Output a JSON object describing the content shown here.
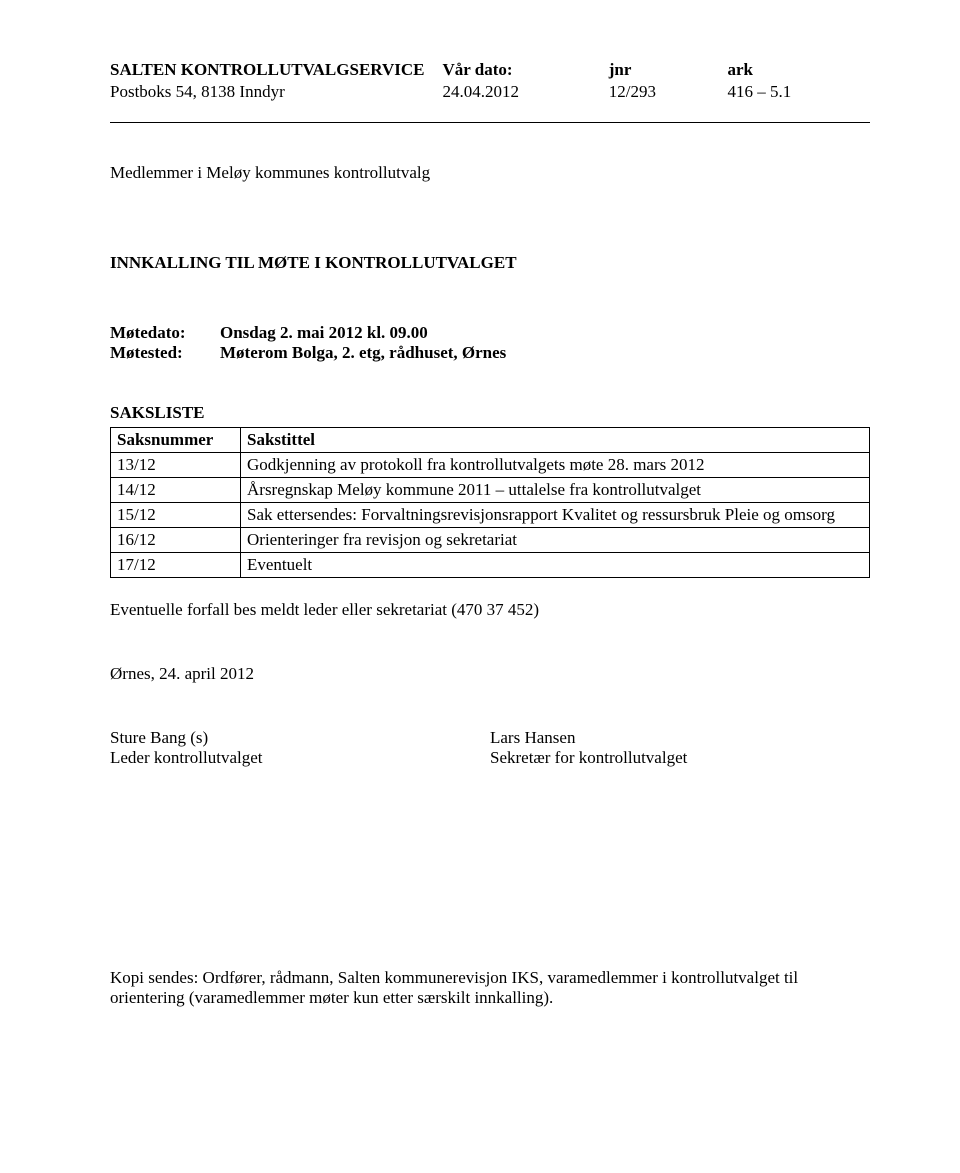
{
  "header": {
    "org": "SALTEN KONTROLLUTVALGSERVICE",
    "dato_label": "Vår dato:",
    "jnr_label": "jnr",
    "ark_label": "ark",
    "address": "Postboks 54, 8138 Inndyr",
    "dato_value": "24.04.2012",
    "jnr_value": "12/293",
    "ark_value": "416 – 5.1"
  },
  "recipients": "Medlemmer i Meløy kommunes kontrollutvalg",
  "title": "INNKALLING TIL MØTE I KONTROLLUTVALGET",
  "meeting": {
    "dato_label": "Møtedato:",
    "dato_value": "Onsdag 2. mai 2012 kl. 09.00",
    "sted_label": "Møtested:",
    "sted_value": "Møterom Bolga, 2. etg, rådhuset, Ørnes"
  },
  "saksliste_heading": "SAKSLISTE",
  "table": {
    "columns": [
      "Saksnummer",
      "Sakstittel"
    ],
    "rows": [
      [
        "13/12",
        "Godkjenning av protokoll fra kontrollutvalgets møte 28. mars 2012"
      ],
      [
        "14/12",
        "Årsregnskap Meløy kommune 2011 – uttalelse fra kontrollutvalget"
      ],
      [
        "15/12",
        "Sak ettersendes: Forvaltningsrevisjonsrapport Kvalitet og ressursbruk Pleie og omsorg"
      ],
      [
        "16/12",
        "Orienteringer fra revisjon og sekretariat"
      ],
      [
        "17/12",
        "Eventuelt"
      ]
    ]
  },
  "forfall": "Eventuelle forfall bes meldt leder eller sekretariat (470 37 452)",
  "place_date": "Ørnes, 24. april 2012",
  "sign": {
    "left_name": "Sture Bang (s)",
    "left_title": "Leder kontrollutvalget",
    "right_name": "Lars Hansen",
    "right_title": "Sekretær for kontrollutvalget"
  },
  "kopi": "Kopi sendes: Ordfører, rådmann, Salten kommunerevisjon IKS, varamedlemmer i kontrollutvalget til orientering (varamedlemmer møter kun etter særskilt innkalling)."
}
